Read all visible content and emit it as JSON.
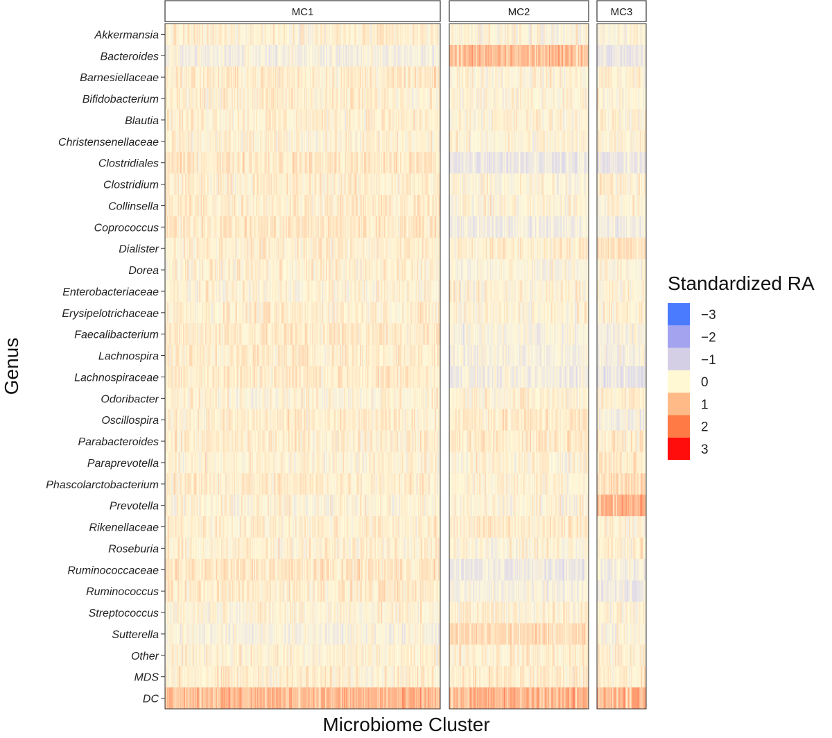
{
  "chart_data": {
    "type": "heatmap",
    "xlabel": "Microbiome Cluster",
    "ylabel": "Genus",
    "legend": {
      "title": "Standardized RA",
      "placement": "right",
      "levels": [
        {
          "value": -3,
          "label": "−3",
          "color": "#4a7bff"
        },
        {
          "value": -2,
          "label": "−2",
          "color": "#a3a3f0"
        },
        {
          "value": -1,
          "label": "−1",
          "color": "#d5cfe6"
        },
        {
          "value": 0,
          "label": "0",
          "color": "#fff8d2"
        },
        {
          "value": 1,
          "label": "1",
          "color": "#ffba88"
        },
        {
          "value": 2,
          "label": "2",
          "color": "#ff7a45"
        },
        {
          "value": 3,
          "label": "3",
          "color": "#ff0d0d"
        }
      ]
    },
    "genera": [
      "Akkermansia",
      "Bacteroides",
      "Barnesiellaceae",
      "Bifidobacterium",
      "Blautia",
      "Christensenellaceae",
      "Clostridiales",
      "Clostridium",
      "Collinsella",
      "Coprococcus",
      "Dialister",
      "Dorea",
      "Enterobacteriaceae",
      "Erysipelotrichaceae",
      "Faecalibacterium",
      "Lachnospira",
      "Lachnospiraceae",
      "Odoribacter",
      "Oscillospira",
      "Parabacteroides",
      "Paraprevotella",
      "Phascolarctobacterium",
      "Prevotella",
      "Rikenellaceae",
      "Roseburia",
      "Ruminococcaceae",
      "Ruminococcus",
      "Streptococcus",
      "Sutterella",
      "Other",
      "MDS",
      "DC"
    ],
    "panels": [
      {
        "name": "MC1",
        "n_samples": 260,
        "genus_means": [
          0.2,
          -0.5,
          0.4,
          0.3,
          0.3,
          0.1,
          0.6,
          0.3,
          0.4,
          0.6,
          0.3,
          0.2,
          0.05,
          0.3,
          0.5,
          0.4,
          0.5,
          0.1,
          0.3,
          0.3,
          0.1,
          0.4,
          0.0,
          0.3,
          0.2,
          0.6,
          0.4,
          0.1,
          -0.3,
          0.2,
          0.3,
          2.2
        ]
      },
      {
        "name": "MC2",
        "n_samples": 130,
        "genus_means": [
          -0.1,
          2.0,
          0.1,
          0.0,
          0.1,
          0.0,
          -0.9,
          -0.1,
          0.0,
          -0.6,
          0.3,
          -0.2,
          0.05,
          0.0,
          -0.3,
          -0.4,
          -0.6,
          0.2,
          0.5,
          0.5,
          0.1,
          0.2,
          0.0,
          0.4,
          0.1,
          -0.8,
          -0.5,
          0.2,
          1.0,
          0.3,
          0.4,
          2.3
        ]
      },
      {
        "name": "MC3",
        "n_samples": 46,
        "genus_means": [
          0.0,
          -1.1,
          0.3,
          0.1,
          0.2,
          0.0,
          -1.0,
          0.3,
          0.1,
          -0.7,
          0.8,
          0.0,
          0.05,
          0.2,
          -0.4,
          -0.5,
          -1.1,
          0.3,
          -0.4,
          0.4,
          0.5,
          0.9,
          2.4,
          0.1,
          0.2,
          -0.5,
          -0.8,
          0.1,
          -0.2,
          0.3,
          0.4,
          2.2
        ]
      }
    ]
  }
}
